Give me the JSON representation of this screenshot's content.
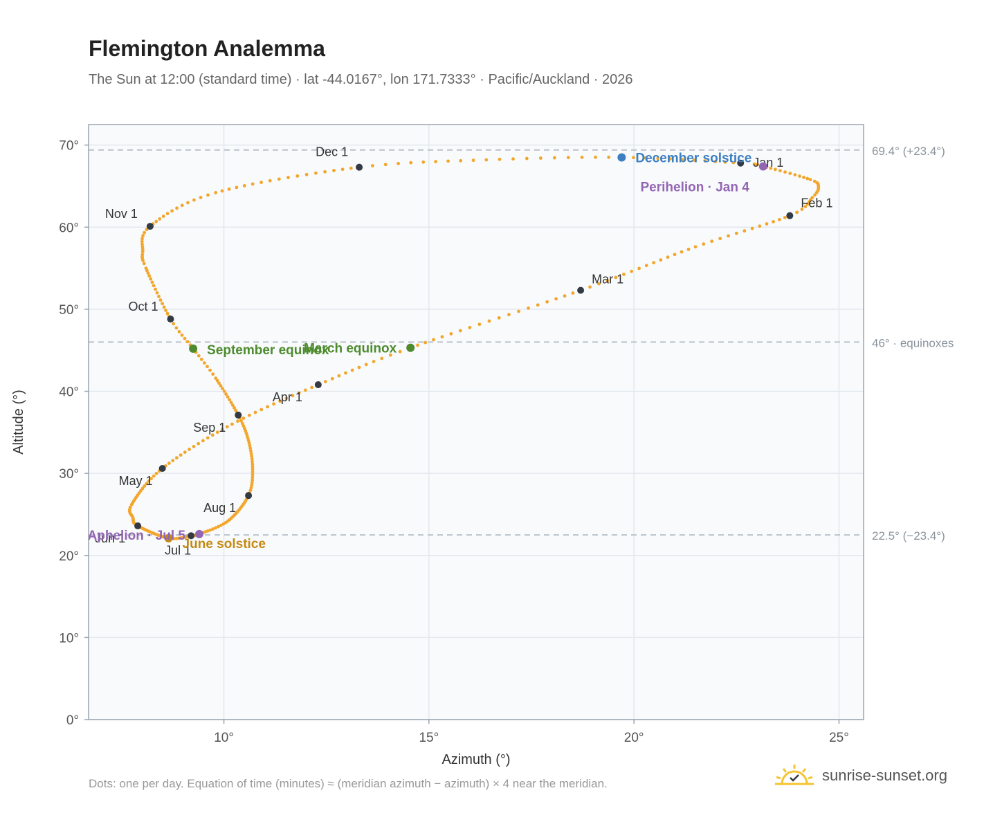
{
  "header": {
    "title": "Flemington Analemma",
    "subtitle": "The Sun at 12:00 (standard time) · lat -44.0167°, lon 171.7333° · Pacific/Auckland · 2026"
  },
  "footer": {
    "note": "Dots: one per day. Equation of time (minutes) ≈ (meridian azimuth − azimuth) × 4 near the meridian.",
    "brand": "sunrise-sunset.org"
  },
  "colors": {
    "curve": "#f2a62b",
    "month_marker": "#333a44",
    "solstice_june": "#c48a14",
    "solstice_december": "#3d7fc1",
    "equinox": "#4e8b2e",
    "apsis": "#9366b4",
    "reference_line": "#b9c3cc",
    "plot_bg": "#f8fafc",
    "grid": "#e2e8ee",
    "axis": "#9aa4b0"
  },
  "chart_data": {
    "type": "scatter",
    "title": "Flemington Analemma",
    "xlabel": "Azimuth (°)",
    "ylabel": "Altitude (°)",
    "xlim": [
      6.7,
      25.6
    ],
    "ylim": [
      0,
      72.5
    ],
    "x_ticks": [
      10,
      15,
      20,
      25
    ],
    "x_tick_labels": [
      "10°",
      "15°",
      "20°",
      "25°"
    ],
    "y_ticks": [
      0,
      10,
      20,
      30,
      40,
      50,
      60,
      70
    ],
    "y_tick_labels": [
      "0°",
      "10°",
      "20°",
      "30°",
      "40°",
      "50°",
      "60°",
      "70°"
    ],
    "grid": true,
    "reference_lines": [
      {
        "y": 69.4,
        "label": "69.4° (+23.4°)"
      },
      {
        "y": 46.0,
        "label": "46° · equinoxes"
      },
      {
        "y": 22.5,
        "label": "22.5° (−23.4°)"
      }
    ],
    "month_markers": [
      {
        "label": "Jan 1",
        "az": 22.6,
        "alt": 67.8
      },
      {
        "label": "Feb 1",
        "az": 23.8,
        "alt": 61.4
      },
      {
        "label": "Mar 1",
        "az": 18.7,
        "alt": 52.3
      },
      {
        "label": "Apr 1",
        "az": 12.3,
        "alt": 40.8
      },
      {
        "label": "May 1",
        "az": 8.5,
        "alt": 30.6
      },
      {
        "label": "Jun 1",
        "az": 7.9,
        "alt": 23.6
      },
      {
        "label": "Jul 1",
        "az": 9.2,
        "alt": 22.4
      },
      {
        "label": "Aug 1",
        "az": 10.6,
        "alt": 27.3
      },
      {
        "label": "Sep 1",
        "az": 10.35,
        "alt": 37.1
      },
      {
        "label": "Oct 1",
        "az": 8.7,
        "alt": 48.8
      },
      {
        "label": "Nov 1",
        "az": 8.2,
        "alt": 60.1
      },
      {
        "label": "Dec 1",
        "az": 13.3,
        "alt": 67.3
      }
    ],
    "events": [
      {
        "label": "December solstice",
        "az": 19.7,
        "alt": 68.5,
        "kind": "solstice_december"
      },
      {
        "label": "Perihelion · Jan 4",
        "az": 23.15,
        "alt": 67.4,
        "kind": "apsis"
      },
      {
        "label": "March equinox",
        "az": 14.55,
        "alt": 45.3,
        "kind": "equinox"
      },
      {
        "label": "September equinox",
        "az": 9.25,
        "alt": 45.2,
        "kind": "equinox"
      },
      {
        "label": "June solstice",
        "az": 8.65,
        "alt": 22.1,
        "kind": "solstice_june"
      },
      {
        "label": "Aphelion · Jul 5",
        "az": 9.4,
        "alt": 22.6,
        "kind": "apsis"
      }
    ],
    "curve_keypoints": [
      {
        "day": 1,
        "az": 22.6,
        "alt": 67.8
      },
      {
        "day": 4,
        "az": 23.15,
        "alt": 67.4
      },
      {
        "day": 15,
        "az": 24.3,
        "alt": 65.8
      },
      {
        "day": 20,
        "az": 24.5,
        "alt": 64.9
      },
      {
        "day": 25,
        "az": 24.35,
        "alt": 63.6
      },
      {
        "day": 32,
        "az": 23.8,
        "alt": 61.4
      },
      {
        "day": 45,
        "az": 21.5,
        "alt": 57.6
      },
      {
        "day": 60,
        "az": 18.7,
        "alt": 52.3
      },
      {
        "day": 79,
        "az": 14.55,
        "alt": 45.3
      },
      {
        "day": 91,
        "az": 12.3,
        "alt": 40.8
      },
      {
        "day": 105,
        "az": 10.2,
        "alt": 36.0
      },
      {
        "day": 121,
        "az": 8.5,
        "alt": 30.6
      },
      {
        "day": 137,
        "az": 7.75,
        "alt": 26.2
      },
      {
        "day": 145,
        "az": 7.78,
        "alt": 24.6
      },
      {
        "day": 152,
        "az": 7.9,
        "alt": 23.6
      },
      {
        "day": 172,
        "az": 8.65,
        "alt": 22.1
      },
      {
        "day": 182,
        "az": 9.2,
        "alt": 22.4
      },
      {
        "day": 186,
        "az": 9.4,
        "alt": 22.6
      },
      {
        "day": 198,
        "az": 10.1,
        "alt": 24.2
      },
      {
        "day": 213,
        "az": 10.6,
        "alt": 27.3
      },
      {
        "day": 223,
        "az": 10.7,
        "alt": 30.5
      },
      {
        "day": 234,
        "az": 10.6,
        "alt": 34.0
      },
      {
        "day": 244,
        "az": 10.35,
        "alt": 37.1
      },
      {
        "day": 258,
        "az": 9.8,
        "alt": 41.6
      },
      {
        "day": 266,
        "az": 9.25,
        "alt": 45.2
      },
      {
        "day": 274,
        "az": 8.7,
        "alt": 48.8
      },
      {
        "day": 290,
        "az": 8.1,
        "alt": 55.0
      },
      {
        "day": 296,
        "az": 8.02,
        "alt": 57.0
      },
      {
        "day": 305,
        "az": 8.2,
        "alt": 60.1
      },
      {
        "day": 318,
        "az": 9.8,
        "alt": 64.2
      },
      {
        "day": 335,
        "az": 13.3,
        "alt": 67.3
      },
      {
        "day": 345,
        "az": 16.4,
        "alt": 68.2
      },
      {
        "day": 355,
        "az": 19.7,
        "alt": 68.5
      },
      {
        "day": 366,
        "az": 22.6,
        "alt": 67.8
      }
    ]
  }
}
